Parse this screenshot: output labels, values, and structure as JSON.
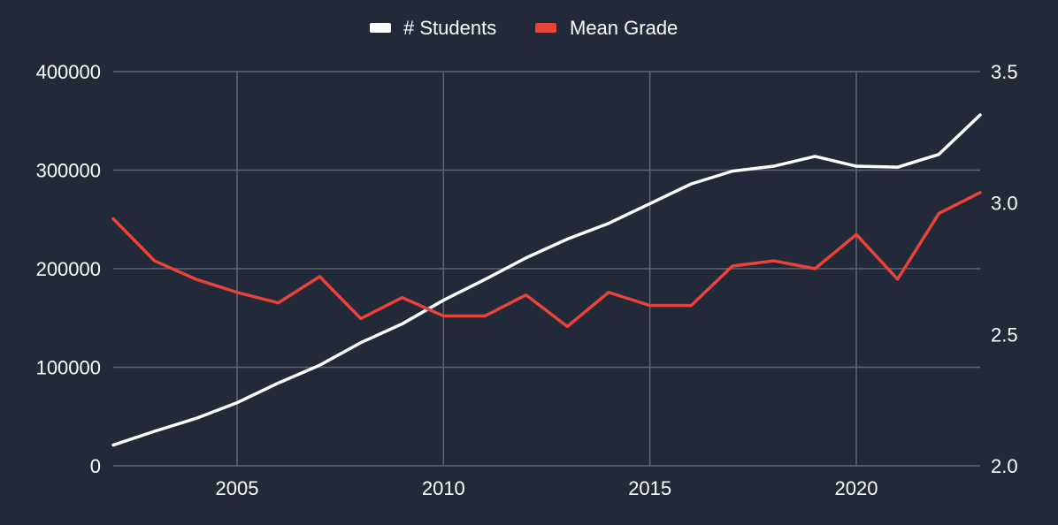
{
  "colors": {
    "background": "#222938",
    "grid": "#5f6572",
    "text": "#ffffff"
  },
  "chart_data": {
    "type": "line",
    "title": "",
    "xlabel": "",
    "ylabel": "",
    "ylabel_right": "",
    "xlim": [
      2002,
      2023
    ],
    "ylim": [
      0,
      400000
    ],
    "ylim_right": [
      2.0,
      3.5
    ],
    "x_ticks": [
      2005,
      2010,
      2015,
      2020
    ],
    "y_ticks": [
      0,
      100000,
      200000,
      300000,
      400000
    ],
    "y_ticks_right": [
      "2.0",
      "2.5",
      "3.0",
      "3.5"
    ],
    "grid": true,
    "legend_position": "top-center",
    "x": [
      2002,
      2003,
      2004,
      2005,
      2006,
      2007,
      2008,
      2009,
      2010,
      2011,
      2012,
      2013,
      2014,
      2015,
      2016,
      2017,
      2018,
      2019,
      2020,
      2021,
      2022,
      2023
    ],
    "series": [
      {
        "name": "# Students",
        "axis": "left",
        "color": "#ffffff",
        "values": [
          21000,
          35000,
          48000,
          64000,
          84000,
          102000,
          125000,
          144000,
          168000,
          189000,
          211000,
          230000,
          246000,
          266000,
          286000,
          299000,
          304000,
          314000,
          304000,
          303000,
          316000,
          356000
        ]
      },
      {
        "name": "Mean Grade",
        "axis": "right",
        "color": "#e8433a",
        "values": [
          2.94,
          2.78,
          2.71,
          2.66,
          2.62,
          2.72,
          2.56,
          2.64,
          2.57,
          2.57,
          2.65,
          2.53,
          2.66,
          2.61,
          2.61,
          2.76,
          2.78,
          2.75,
          2.88,
          2.71,
          2.96,
          3.04
        ]
      }
    ]
  }
}
